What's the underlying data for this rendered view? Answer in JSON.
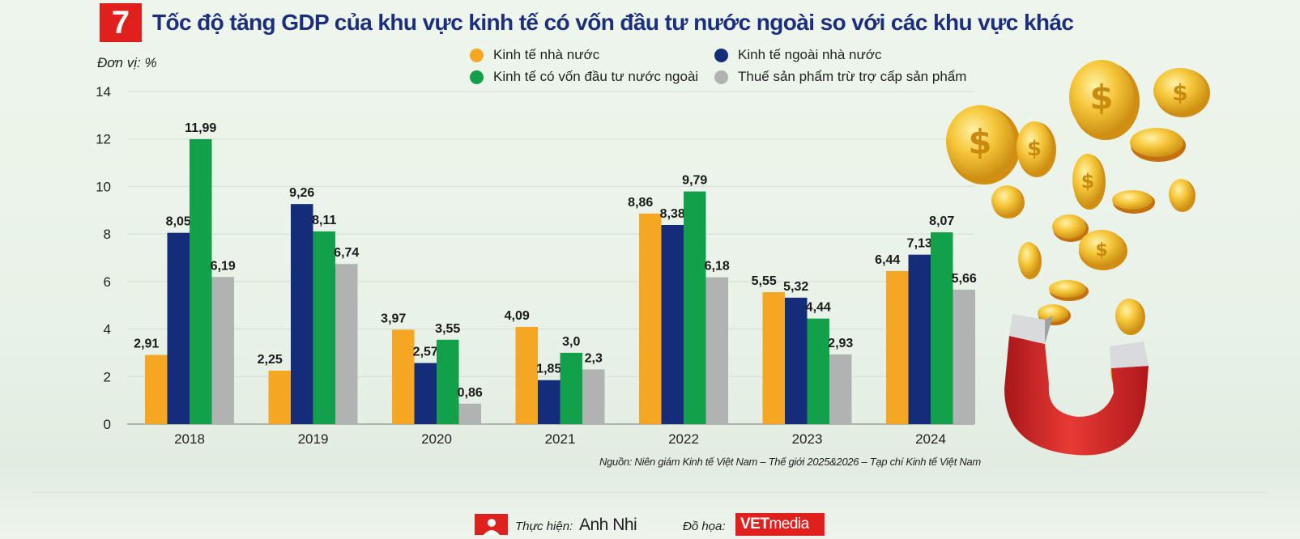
{
  "header": {
    "number": "7",
    "title": "Tốc độ tăng GDP của khu vực kinh tế có vốn đầu tư nước ngoài so với các khu vực khác",
    "unit": "Đơn vị: %"
  },
  "chart_data": {
    "type": "bar",
    "categories": [
      "2018",
      "2019",
      "2020",
      "2021",
      "2022",
      "2023",
      "2024"
    ],
    "series": [
      {
        "name": "Kinh tế nhà nước",
        "color": "#f5a623",
        "values": [
          2.91,
          2.25,
          3.97,
          4.09,
          8.86,
          5.55,
          6.44
        ],
        "labels": [
          "2,91",
          "2,25",
          "3,97",
          "4,09",
          "8,86",
          "5,55",
          "6,44"
        ]
      },
      {
        "name": "Kinh tế ngoài nhà nước",
        "color": "#142c7a",
        "values": [
          8.05,
          9.26,
          2.57,
          1.85,
          8.38,
          5.32,
          7.13
        ],
        "labels": [
          "8,05",
          "9,26",
          "2,57",
          "1,85",
          "8,38",
          "5,32",
          "7,13"
        ]
      },
      {
        "name": "Kinh tế có vốn đầu tư nước ngoài",
        "color": "#12a04a",
        "values": [
          11.99,
          8.11,
          3.55,
          3.0,
          9.79,
          4.44,
          8.07
        ],
        "labels": [
          "11,99",
          "8,11",
          "3,55",
          "3,0",
          "9,79",
          "4,44",
          "8,07"
        ]
      },
      {
        "name": "Thuế sản phẩm trừ trợ cấp sản phẩm",
        "color": "#b1b3b3",
        "values": [
          6.19,
          6.74,
          0.86,
          2.3,
          6.18,
          2.93,
          5.66
        ],
        "labels": [
          "6,19",
          "6,74",
          "0,86",
          "2,3",
          "6,18",
          "2,93",
          "5,66"
        ]
      }
    ],
    "ylim": [
      0,
      14
    ],
    "yticks": [
      "0",
      "2",
      "4",
      "6",
      "8",
      "10",
      "12",
      "14"
    ],
    "grid": true,
    "legend_position": "top"
  },
  "source": "Nguồn: Niên giám Kinh tế Việt Nam – Thế giới 2025&2026 – Tạp chí Kinh tế Việt Nam",
  "credits": {
    "author_label": "Thực hiện:",
    "author": "Anh Nhi",
    "design_label": "Đồ họa:",
    "logo_bold": "VET",
    "logo_rest": "media"
  }
}
